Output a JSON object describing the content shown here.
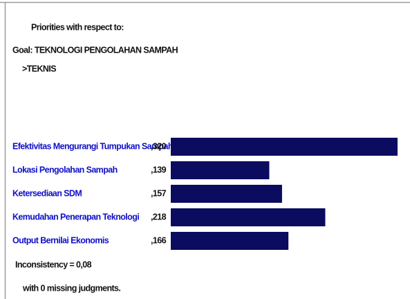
{
  "chart_data": {
    "type": "bar",
    "orientation": "horizontal",
    "title": "Priorities with respect to:",
    "subtitle": [
      "Goal: TEKNOLOGI PENGOLAHAN SAMPAH",
      ">TEKNIS"
    ],
    "categories": [
      "Efektivitas Mengurangi Tumpukan Sampah",
      "Lokasi Pengolahan Sampah",
      "Ketersediaan SDM",
      "Kemudahan Penerapan Teknologi",
      "Output Bernilai Ekonomis"
    ],
    "values": [
      0.32,
      0.139,
      0.157,
      0.218,
      0.166
    ],
    "value_labels": [
      ",320",
      ",139",
      ",157",
      ",218",
      ",166"
    ],
    "color": "#0b0b60",
    "annotations": [
      "Inconsistency = 0,08",
      "with 0  missing judgments."
    ]
  }
}
